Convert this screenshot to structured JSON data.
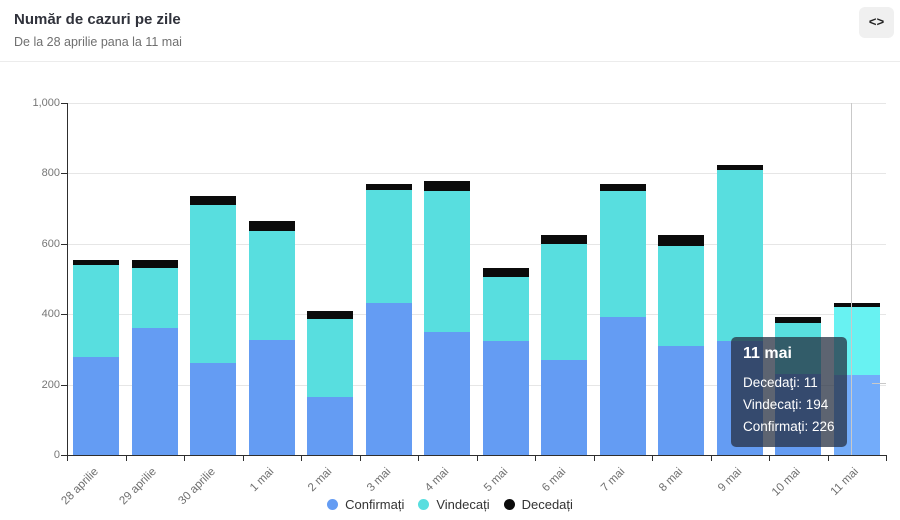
{
  "header": {
    "title": "Număr de cazuri pe zile",
    "subtitle": "De la 28 aprilie pana la 11 mai",
    "embed_icon": "<>"
  },
  "chart_data": {
    "type": "bar",
    "stacked": true,
    "title": "Număr de cazuri pe zile",
    "subtitle": "De la 28 aprilie pana la 11 mai",
    "categories": [
      "28 aprilie",
      "29 aprilie",
      "30 aprilie",
      "1 mai",
      "2 mai",
      "3 mai",
      "4 mai",
      "5 mai",
      "6 mai",
      "7 mai",
      "8 mai",
      "9 mai",
      "10 mai",
      "11 mai"
    ],
    "series": [
      {
        "name": "Confirmați",
        "color": "#649CF3",
        "hover_color": "#73ACFA",
        "values": [
          277,
          362,
          262,
          326,
          165,
          432,
          349,
          325,
          270,
          392,
          310,
          323,
          231,
          226
        ]
      },
      {
        "name": "Vindecați",
        "color": "#58DEDF",
        "hover_color": "#68F2F2",
        "values": [
          262,
          168,
          448,
          310,
          220,
          320,
          400,
          182,
          330,
          358,
          285,
          488,
          144,
          194
        ]
      },
      {
        "name": "Decedați",
        "color": "#0B0B0B",
        "hover_color": "#0B0B0B",
        "values": [
          16,
          25,
          25,
          28,
          25,
          18,
          28,
          25,
          25,
          20,
          30,
          14,
          18,
          11
        ]
      }
    ],
    "xlabel": "",
    "ylabel": "",
    "ylim": [
      0,
      1000
    ],
    "ytick_labels": [
      "0",
      "200",
      "400",
      "600",
      "800",
      "1,000"
    ],
    "grid": true,
    "legend_position": "bottom",
    "highlighted_category_index": 13
  },
  "tooltip": {
    "title": "11 mai",
    "rows": [
      {
        "label": "Decedaţi",
        "value": "11"
      },
      {
        "label": "Vindecați",
        "value": "194"
      },
      {
        "label": "Confirmați",
        "value": "226"
      }
    ]
  },
  "colors": {
    "axis": "#2e2e2e",
    "grid": "#e6e6e6",
    "tick_label": "#767676",
    "crosshair": "#c9c9c9",
    "tooltip_bg": "rgba(37,46,63,0.74)"
  }
}
